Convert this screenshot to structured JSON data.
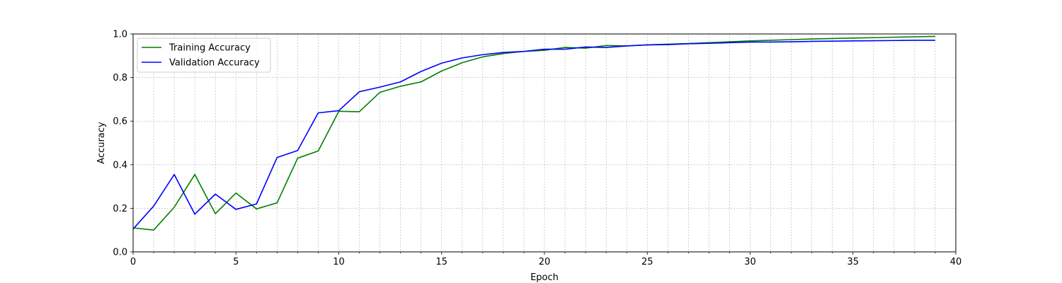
{
  "chart_data": {
    "type": "line",
    "title": "",
    "xlabel": "Epoch",
    "ylabel": "Accuracy",
    "xlim": [
      0,
      40
    ],
    "ylim": [
      0,
      1.0
    ],
    "x_major_ticks": [
      "0",
      "5",
      "10",
      "15",
      "20",
      "25",
      "30",
      "35",
      "40"
    ],
    "y_major_ticks": [
      "0.0",
      "0.2",
      "0.4",
      "0.6",
      "0.8",
      "1.0"
    ],
    "grid": true,
    "legend_position": "upper-left",
    "x": [
      0,
      1,
      2,
      3,
      4,
      5,
      6,
      7,
      8,
      9,
      10,
      11,
      12,
      13,
      14,
      15,
      16,
      17,
      18,
      19,
      20,
      21,
      22,
      23,
      24,
      25,
      26,
      27,
      28,
      29,
      30,
      31,
      32,
      33,
      34,
      35,
      36,
      37,
      38,
      39
    ],
    "series": [
      {
        "name": "Training Accuracy",
        "color": "#008000",
        "values": [
          0.11,
          0.1,
          0.205,
          0.355,
          0.175,
          0.27,
          0.197,
          0.225,
          0.43,
          0.463,
          0.645,
          0.643,
          0.732,
          0.76,
          0.78,
          0.83,
          0.868,
          0.895,
          0.91,
          0.92,
          0.925,
          0.938,
          0.935,
          0.947,
          0.945,
          0.95,
          0.953,
          0.956,
          0.96,
          0.964,
          0.968,
          0.971,
          0.974,
          0.977,
          0.979,
          0.981,
          0.983,
          0.985,
          0.987,
          0.989
        ]
      },
      {
        "name": "Validation Accuracy",
        "color": "#0000ff",
        "values": [
          0.105,
          0.21,
          0.355,
          0.173,
          0.265,
          0.195,
          0.22,
          0.433,
          0.465,
          0.638,
          0.648,
          0.735,
          0.756,
          0.78,
          0.828,
          0.866,
          0.89,
          0.905,
          0.915,
          0.92,
          0.93,
          0.93,
          0.94,
          0.938,
          0.945,
          0.95,
          0.951,
          0.955,
          0.957,
          0.96,
          0.963,
          0.963,
          0.964,
          0.966,
          0.967,
          0.968,
          0.969,
          0.97,
          0.971,
          0.971
        ]
      }
    ]
  }
}
